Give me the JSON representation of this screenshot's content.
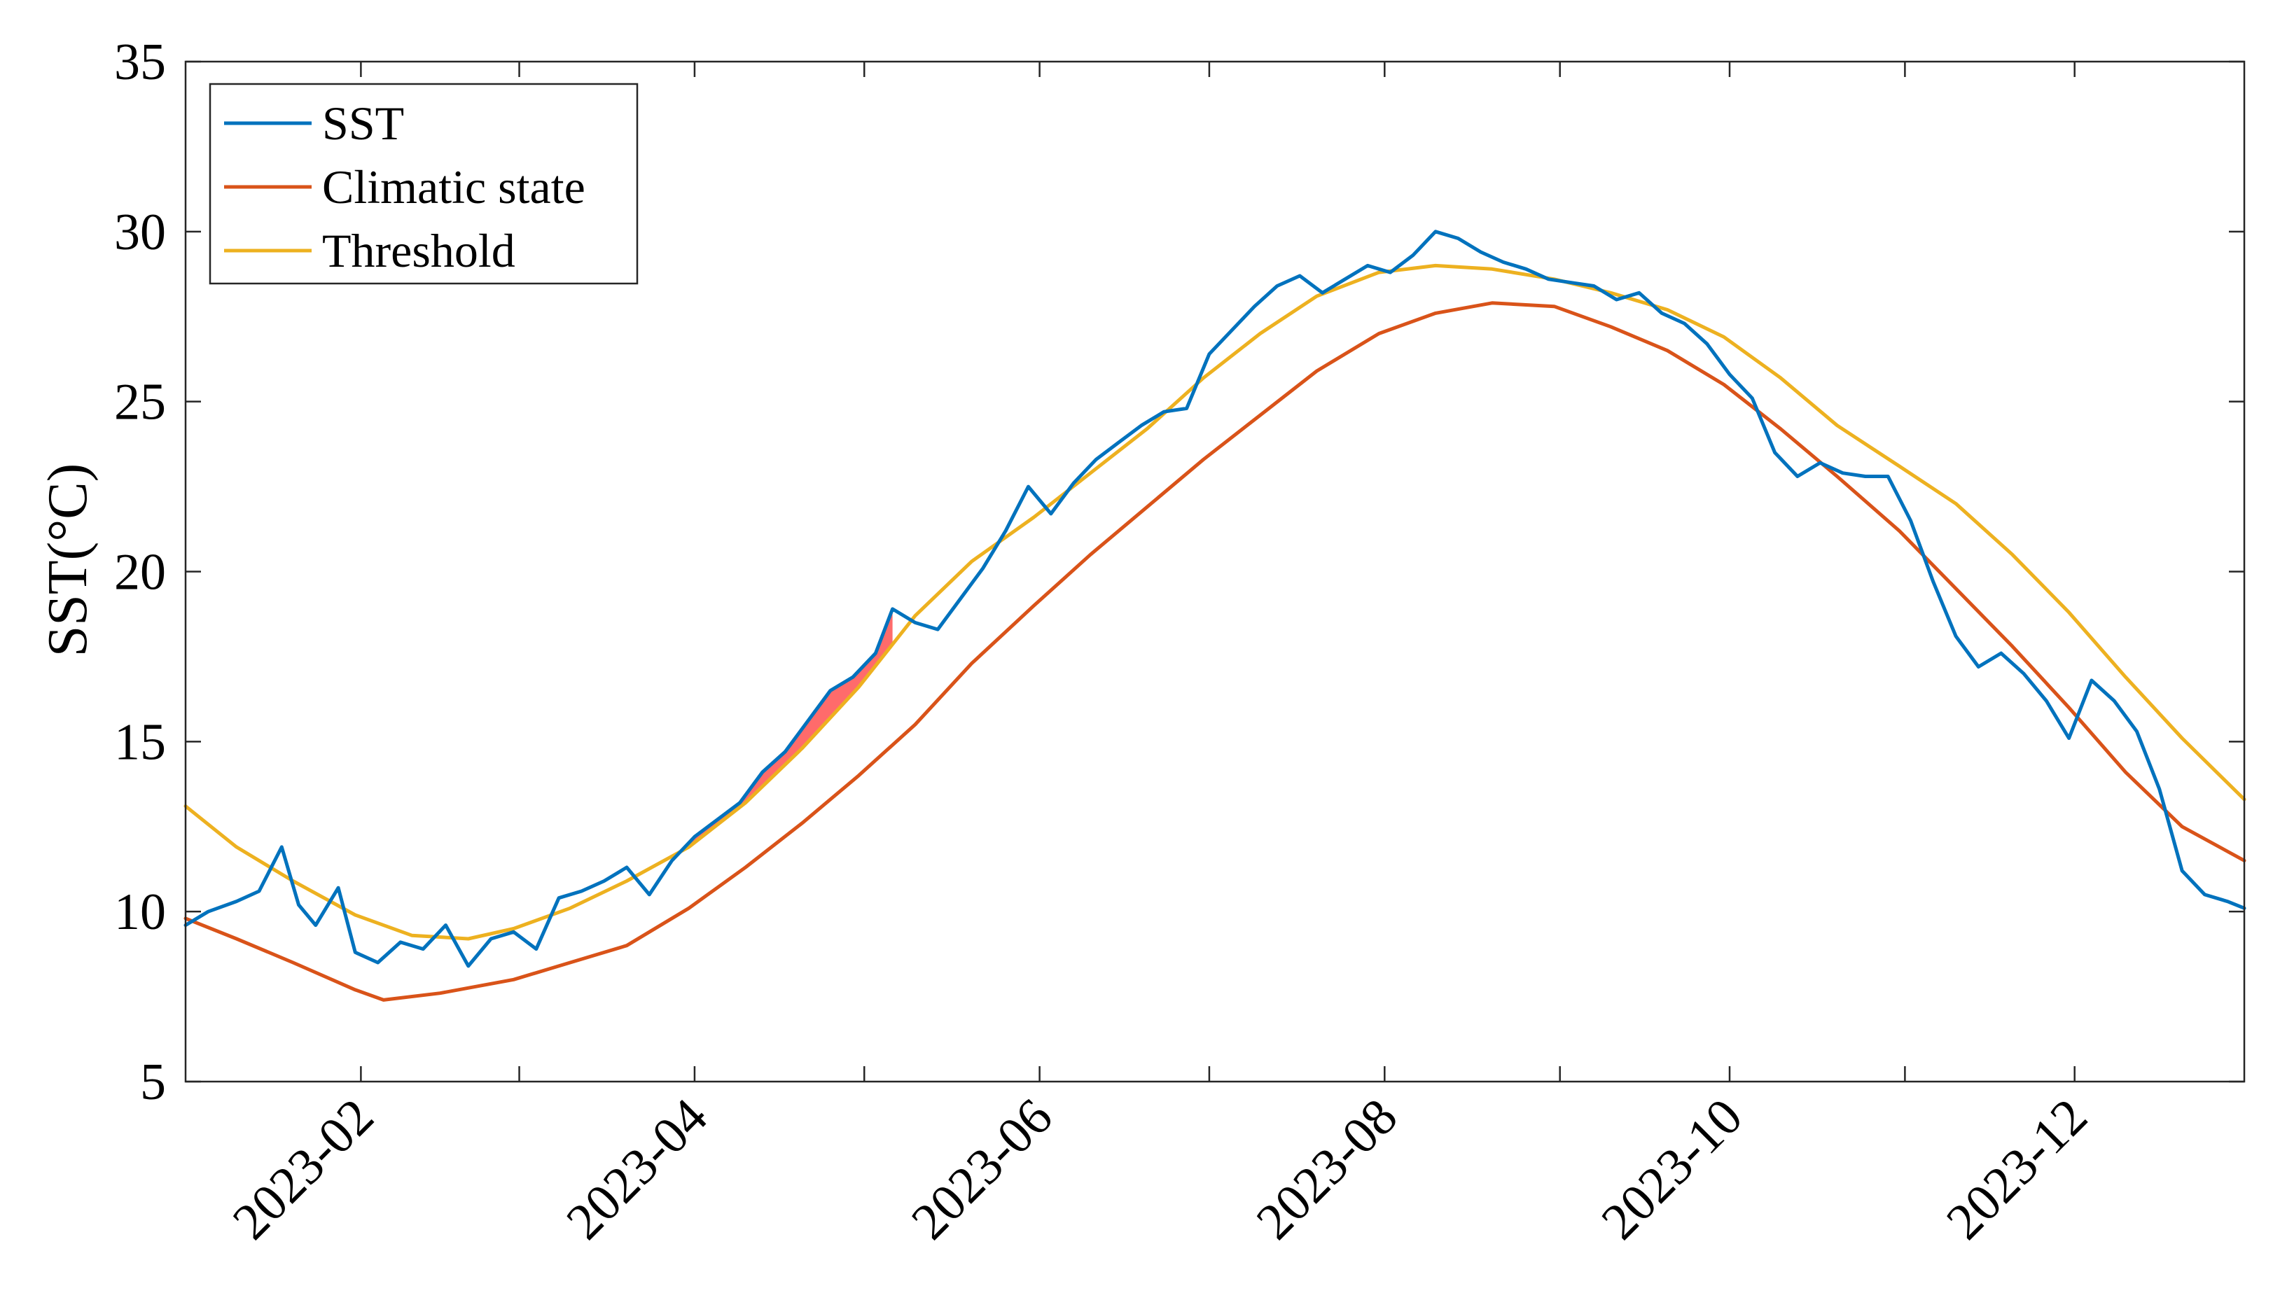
{
  "chart_data": {
    "type": "line",
    "title": "",
    "xlabel": "",
    "ylabel": "SST(°C)",
    "x_range": [
      "2023-01-01",
      "2023-12-31"
    ],
    "ylim": [
      5,
      35
    ],
    "y_ticks": [
      5,
      10,
      15,
      20,
      25,
      30,
      35
    ],
    "x_ticks": [
      "2023-02",
      "2023-04",
      "2023-06",
      "2023-08",
      "2023-10",
      "2023-12"
    ],
    "grid": false,
    "legend_position": "top-left",
    "legend": [
      "SST",
      "Climatic state",
      "Threshold"
    ],
    "colors": {
      "SST": "#0072BD",
      "Climatic state": "#D95319",
      "Threshold": "#EDB120",
      "exceedance_fill": "#FF6B6B"
    },
    "shaded_exceedance": {
      "start": "2023-03-30",
      "end": "2023-05-06"
    },
    "series": [
      {
        "name": "SST",
        "x": [
          "2023-01-01",
          "2023-01-05",
          "2023-01-10",
          "2023-01-14",
          "2023-01-18",
          "2023-01-21",
          "2023-01-24",
          "2023-01-28",
          "2023-01-31",
          "2023-02-04",
          "2023-02-08",
          "2023-02-12",
          "2023-02-16",
          "2023-02-20",
          "2023-02-24",
          "2023-02-28",
          "2023-03-04",
          "2023-03-08",
          "2023-03-12",
          "2023-03-16",
          "2023-03-20",
          "2023-03-24",
          "2023-03-28",
          "2023-04-01",
          "2023-04-05",
          "2023-04-09",
          "2023-04-13",
          "2023-04-17",
          "2023-04-21",
          "2023-04-25",
          "2023-04-29",
          "2023-05-03",
          "2023-05-06",
          "2023-05-10",
          "2023-05-14",
          "2023-05-18",
          "2023-05-22",
          "2023-05-26",
          "2023-05-30",
          "2023-06-03",
          "2023-06-07",
          "2023-06-11",
          "2023-06-15",
          "2023-06-19",
          "2023-06-23",
          "2023-06-27",
          "2023-07-01",
          "2023-07-05",
          "2023-07-09",
          "2023-07-13",
          "2023-07-17",
          "2023-07-21",
          "2023-07-25",
          "2023-07-29",
          "2023-08-02",
          "2023-08-06",
          "2023-08-10",
          "2023-08-14",
          "2023-08-18",
          "2023-08-22",
          "2023-08-26",
          "2023-08-30",
          "2023-09-03",
          "2023-09-07",
          "2023-09-11",
          "2023-09-15",
          "2023-09-19",
          "2023-09-23",
          "2023-09-27",
          "2023-10-01",
          "2023-10-05",
          "2023-10-09",
          "2023-10-13",
          "2023-10-17",
          "2023-10-21",
          "2023-10-25",
          "2023-10-29",
          "2023-11-02",
          "2023-11-06",
          "2023-11-10",
          "2023-11-14",
          "2023-11-18",
          "2023-11-22",
          "2023-11-26",
          "2023-11-30",
          "2023-12-04",
          "2023-12-08",
          "2023-12-12",
          "2023-12-16",
          "2023-12-20",
          "2023-12-24",
          "2023-12-28",
          "2023-12-31"
        ],
        "y": [
          9.6,
          10.0,
          10.3,
          10.6,
          11.9,
          10.2,
          9.6,
          10.7,
          8.8,
          8.5,
          9.1,
          8.9,
          9.6,
          8.4,
          9.2,
          9.4,
          8.9,
          10.4,
          10.6,
          10.9,
          11.3,
          10.5,
          11.5,
          12.2,
          12.7,
          13.2,
          14.1,
          14.7,
          15.6,
          16.5,
          16.9,
          17.6,
          18.9,
          18.5,
          18.3,
          19.2,
          20.1,
          21.2,
          22.5,
          21.7,
          22.6,
          23.3,
          23.8,
          24.3,
          24.7,
          24.8,
          26.4,
          27.1,
          27.8,
          28.4,
          28.7,
          28.2,
          28.6,
          29.0,
          28.8,
          29.3,
          30.0,
          29.8,
          29.4,
          29.1,
          28.9,
          28.6,
          28.5,
          28.4,
          28.0,
          28.2,
          27.6,
          27.3,
          26.7,
          25.8,
          25.1,
          23.5,
          22.8,
          23.2,
          22.9,
          22.8,
          22.8,
          21.5,
          19.7,
          18.1,
          17.2,
          17.6,
          17.0,
          16.2,
          15.1,
          16.8,
          16.2,
          15.3,
          13.6,
          11.2,
          10.5,
          10.3,
          10.1
        ]
      },
      {
        "name": "Climatic state",
        "x": [
          "2023-01-01",
          "2023-01-10",
          "2023-01-20",
          "2023-01-31",
          "2023-02-05",
          "2023-02-15",
          "2023-02-28",
          "2023-03-10",
          "2023-03-20",
          "2023-03-31",
          "2023-04-10",
          "2023-04-20",
          "2023-04-30",
          "2023-05-10",
          "2023-05-20",
          "2023-05-31",
          "2023-06-10",
          "2023-06-20",
          "2023-06-30",
          "2023-07-10",
          "2023-07-20",
          "2023-07-31",
          "2023-08-10",
          "2023-08-20",
          "2023-08-31",
          "2023-09-10",
          "2023-09-20",
          "2023-09-30",
          "2023-10-10",
          "2023-10-20",
          "2023-10-31",
          "2023-11-10",
          "2023-11-20",
          "2023-11-30",
          "2023-12-10",
          "2023-12-20",
          "2023-12-31"
        ],
        "y": [
          9.8,
          9.2,
          8.5,
          7.7,
          7.4,
          7.6,
          8.0,
          8.5,
          9.0,
          10.1,
          11.3,
          12.6,
          14.0,
          15.5,
          17.3,
          19.0,
          20.5,
          21.9,
          23.3,
          24.6,
          25.9,
          27.0,
          27.6,
          27.9,
          27.8,
          27.2,
          26.5,
          25.5,
          24.2,
          22.8,
          21.2,
          19.5,
          17.8,
          16.0,
          14.1,
          12.5,
          11.5
        ]
      },
      {
        "name": "Threshold",
        "x": [
          "2023-01-01",
          "2023-01-10",
          "2023-01-20",
          "2023-01-31",
          "2023-02-10",
          "2023-02-20",
          "2023-02-28",
          "2023-03-10",
          "2023-03-20",
          "2023-03-31",
          "2023-04-10",
          "2023-04-20",
          "2023-04-30",
          "2023-05-10",
          "2023-05-20",
          "2023-05-31",
          "2023-06-10",
          "2023-06-20",
          "2023-06-30",
          "2023-07-10",
          "2023-07-20",
          "2023-07-31",
          "2023-08-10",
          "2023-08-20",
          "2023-08-31",
          "2023-09-10",
          "2023-09-20",
          "2023-09-30",
          "2023-10-10",
          "2023-10-20",
          "2023-10-31",
          "2023-11-10",
          "2023-11-20",
          "2023-11-30",
          "2023-12-10",
          "2023-12-20",
          "2023-12-31"
        ],
        "y": [
          13.1,
          11.9,
          10.9,
          9.9,
          9.3,
          9.2,
          9.5,
          10.1,
          10.9,
          11.9,
          13.2,
          14.8,
          16.6,
          18.7,
          20.3,
          21.6,
          22.9,
          24.2,
          25.7,
          27.0,
          28.1,
          28.8,
          29.0,
          28.9,
          28.6,
          28.2,
          27.7,
          26.9,
          25.7,
          24.3,
          23.1,
          22.0,
          20.5,
          18.8,
          16.9,
          15.1,
          13.3
        ]
      }
    ]
  }
}
